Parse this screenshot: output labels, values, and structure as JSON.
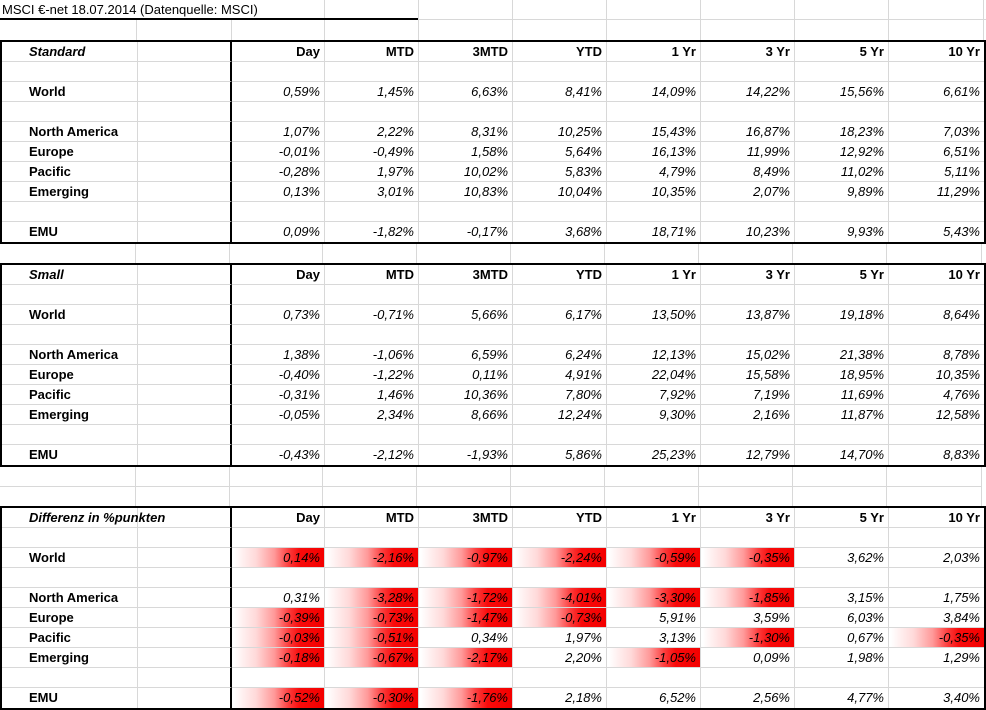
{
  "title": "MSCI €-net 18.07.2014 (Datenquelle: MSCI)",
  "columns": [
    "Day",
    "MTD",
    "3MTD",
    "YTD",
    "1 Yr",
    "3 Yr",
    "5 Yr",
    "10 Yr"
  ],
  "colors": {
    "text": "#000000",
    "background": "#ffffff",
    "table_border": "#000000",
    "gridline": "#d8d8d8",
    "highlight_red": "#f40000"
  },
  "tables": [
    {
      "name": "Standard",
      "rows": [
        {
          "label": "World",
          "values": [
            "0,59%",
            "1,45%",
            "6,63%",
            "8,41%",
            "14,09%",
            "14,22%",
            "15,56%",
            "6,61%"
          ]
        },
        {
          "label": "North America",
          "values": [
            "1,07%",
            "2,22%",
            "8,31%",
            "10,25%",
            "15,43%",
            "16,87%",
            "18,23%",
            "7,03%"
          ]
        },
        {
          "label": "Europe",
          "values": [
            "-0,01%",
            "-0,49%",
            "1,58%",
            "5,64%",
            "16,13%",
            "11,99%",
            "12,92%",
            "6,51%"
          ]
        },
        {
          "label": "Pacific",
          "values": [
            "-0,28%",
            "1,97%",
            "10,02%",
            "5,83%",
            "4,79%",
            "8,49%",
            "11,02%",
            "5,11%"
          ]
        },
        {
          "label": "Emerging",
          "values": [
            "0,13%",
            "3,01%",
            "10,83%",
            "10,04%",
            "10,35%",
            "2,07%",
            "9,89%",
            "11,29%"
          ]
        },
        {
          "label": "EMU",
          "values": [
            "0,09%",
            "-1,82%",
            "-0,17%",
            "3,68%",
            "18,71%",
            "10,23%",
            "9,93%",
            "5,43%"
          ]
        }
      ]
    },
    {
      "name": "Small",
      "rows": [
        {
          "label": "World",
          "values": [
            "0,73%",
            "-0,71%",
            "5,66%",
            "6,17%",
            "13,50%",
            "13,87%",
            "19,18%",
            "8,64%"
          ]
        },
        {
          "label": "North America",
          "values": [
            "1,38%",
            "-1,06%",
            "6,59%",
            "6,24%",
            "12,13%",
            "15,02%",
            "21,38%",
            "8,78%"
          ]
        },
        {
          "label": "Europe",
          "values": [
            "-0,40%",
            "-1,22%",
            "0,11%",
            "4,91%",
            "22,04%",
            "15,58%",
            "18,95%",
            "10,35%"
          ]
        },
        {
          "label": "Pacific",
          "values": [
            "-0,31%",
            "1,46%",
            "10,36%",
            "7,80%",
            "7,92%",
            "7,19%",
            "11,69%",
            "4,76%"
          ]
        },
        {
          "label": "Emerging",
          "values": [
            "-0,05%",
            "2,34%",
            "8,66%",
            "12,24%",
            "9,30%",
            "2,16%",
            "11,87%",
            "12,58%"
          ]
        },
        {
          "label": "EMU",
          "values": [
            "-0,43%",
            "-2,12%",
            "-1,93%",
            "5,86%",
            "25,23%",
            "12,79%",
            "14,70%",
            "8,83%"
          ]
        }
      ]
    },
    {
      "name": "Differenz in %punkten",
      "rows": [
        {
          "label": "World",
          "values": [
            "0,14%",
            "-2,16%",
            "-0,97%",
            "-2,24%",
            "-0,59%",
            "-0,35%",
            "3,62%",
            "2,03%"
          ],
          "highlight": [
            1,
            1,
            1,
            1,
            1,
            1,
            0,
            0
          ]
        },
        {
          "label": "North America",
          "values": [
            "0,31%",
            "-3,28%",
            "-1,72%",
            "-4,01%",
            "-3,30%",
            "-1,85%",
            "3,15%",
            "1,75%"
          ],
          "highlight": [
            0,
            1,
            1,
            1,
            1,
            1,
            0,
            0
          ]
        },
        {
          "label": "Europe",
          "values": [
            "-0,39%",
            "-0,73%",
            "-1,47%",
            "-0,73%",
            "5,91%",
            "3,59%",
            "6,03%",
            "3,84%"
          ],
          "highlight": [
            1,
            1,
            1,
            1,
            0,
            0,
            0,
            0
          ]
        },
        {
          "label": "Pacific",
          "values": [
            "-0,03%",
            "-0,51%",
            "0,34%",
            "1,97%",
            "3,13%",
            "-1,30%",
            "0,67%",
            "-0,35%"
          ],
          "highlight": [
            1,
            1,
            0,
            0,
            0,
            1,
            0,
            1
          ]
        },
        {
          "label": "Emerging",
          "values": [
            "-0,18%",
            "-0,67%",
            "-2,17%",
            "2,20%",
            "-1,05%",
            "0,09%",
            "1,98%",
            "1,29%"
          ],
          "highlight": [
            1,
            1,
            1,
            0,
            1,
            0,
            0,
            0
          ]
        },
        {
          "label": "EMU",
          "values": [
            "-0,52%",
            "-0,30%",
            "-1,76%",
            "2,18%",
            "6,52%",
            "2,56%",
            "4,77%",
            "3,40%"
          ],
          "highlight": [
            1,
            1,
            1,
            0,
            0,
            0,
            0,
            0
          ]
        }
      ]
    }
  ]
}
